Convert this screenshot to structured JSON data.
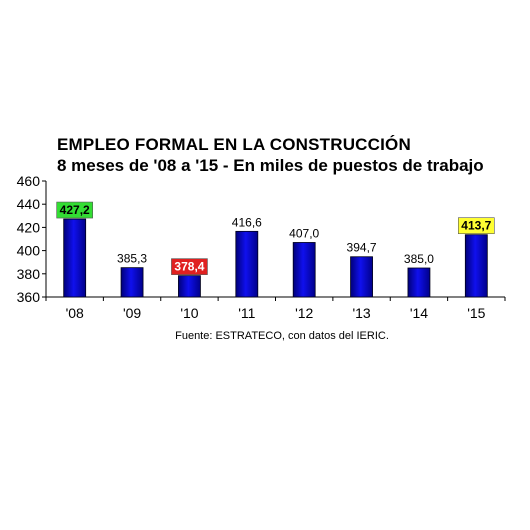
{
  "chart_data": {
    "type": "bar",
    "title": "EMPLEO FORMAL EN LA CONSTRUCCIÓN",
    "subtitle": "8 meses de '08 a '15 - En miles de puestos de trabajo",
    "source": "Fuente: ESTRATECO, con datos del IERIC.",
    "categories": [
      "'08",
      "'09",
      "'10",
      "'11",
      "'12",
      "'13",
      "'14",
      "'15"
    ],
    "values": [
      427.2,
      385.3,
      378.4,
      416.6,
      407.0,
      394.7,
      385.0,
      413.7
    ],
    "value_labels": [
      "427,2",
      "385,3",
      "378,4",
      "416,6",
      "407,0",
      "394,7",
      "385,0",
      "413,7"
    ],
    "highlights": {
      "0": {
        "bg": "#33dd33",
        "color": "#000000"
      },
      "2": {
        "bg": "#e02020",
        "color": "#ffffff"
      },
      "7": {
        "bg": "#ffff33",
        "color": "#000000"
      }
    },
    "ylim": [
      360,
      460
    ],
    "yticks": [
      "360",
      "380",
      "400",
      "420",
      "440",
      "460"
    ],
    "bar_color": "#0a0ad2",
    "grid": false,
    "legend": "none"
  }
}
